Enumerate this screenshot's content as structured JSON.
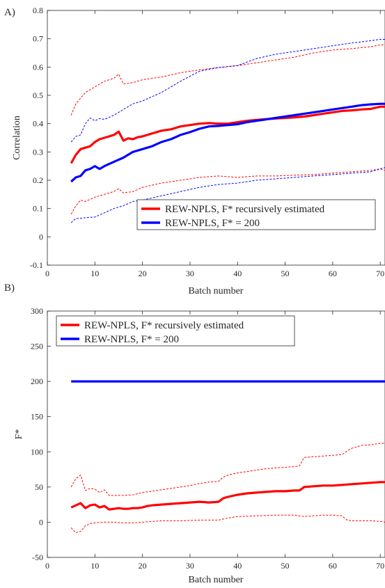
{
  "chart_data": [
    {
      "type": "line",
      "panel_label": "A)",
      "xlabel": "Batch number",
      "ylabel": "Correlation",
      "xlim": [
        0,
        71
      ],
      "ylim": [
        -0.1,
        0.8
      ],
      "x_ticks": [
        "0",
        "10",
        "20",
        "30",
        "40",
        "50",
        "60",
        "70"
      ],
      "y_ticks": [
        "-0.1",
        "0",
        "0.1",
        "0.2",
        "0.3",
        "0.4",
        "0.5",
        "0.6",
        "0.7",
        "0.8"
      ],
      "grid": false,
      "legend_position": "lower-right",
      "legend": [
        "REW-NPLS, F* recursively estimated",
        "REW-NPLS, F* = 200"
      ],
      "series": [
        {
          "name": "REW-NPLS, F* recursively estimated",
          "color": "#ff0000",
          "style": "solid",
          "x": [
            5,
            6,
            7,
            8,
            9,
            10,
            11,
            12,
            13,
            14,
            15,
            16,
            17,
            18,
            19,
            20,
            22,
            24,
            26,
            28,
            30,
            32,
            34,
            36,
            38,
            40,
            42,
            44,
            46,
            48,
            50,
            52,
            54,
            56,
            58,
            60,
            62,
            64,
            66,
            68,
            70,
            71
          ],
          "y": [
            0.26,
            0.29,
            0.31,
            0.315,
            0.32,
            0.335,
            0.345,
            0.35,
            0.355,
            0.36,
            0.372,
            0.34,
            0.348,
            0.345,
            0.352,
            0.355,
            0.365,
            0.375,
            0.38,
            0.39,
            0.395,
            0.4,
            0.402,
            0.4,
            0.4,
            0.405,
            0.41,
            0.413,
            0.416,
            0.418,
            0.42,
            0.422,
            0.425,
            0.43,
            0.435,
            0.44,
            0.445,
            0.447,
            0.45,
            0.452,
            0.46,
            0.46
          ]
        },
        {
          "name": "REW-NPLS, F* = 200",
          "color": "#0000ff",
          "style": "solid",
          "x": [
            5,
            6,
            7,
            8,
            9,
            10,
            11,
            12,
            14,
            16,
            18,
            20,
            22,
            24,
            26,
            28,
            30,
            32,
            34,
            36,
            38,
            40,
            42,
            44,
            46,
            48,
            50,
            52,
            54,
            56,
            58,
            60,
            62,
            64,
            66,
            68,
            70,
            71
          ],
          "y": [
            0.195,
            0.21,
            0.215,
            0.235,
            0.24,
            0.25,
            0.24,
            0.25,
            0.265,
            0.28,
            0.3,
            0.31,
            0.32,
            0.335,
            0.345,
            0.36,
            0.37,
            0.382,
            0.39,
            0.392,
            0.395,
            0.398,
            0.405,
            0.41,
            0.415,
            0.42,
            0.425,
            0.43,
            0.435,
            0.44,
            0.445,
            0.45,
            0.455,
            0.46,
            0.465,
            0.468,
            0.47,
            0.47
          ]
        },
        {
          "color": "#ff0000",
          "style": "dashed",
          "x": [
            5,
            6,
            7,
            8,
            9,
            10,
            12,
            14,
            15,
            16,
            18,
            20,
            24,
            28,
            32,
            36,
            40,
            44,
            48,
            52,
            56,
            60,
            64,
            68,
            70,
            71
          ],
          "y": [
            0.43,
            0.47,
            0.49,
            0.51,
            0.52,
            0.53,
            0.55,
            0.56,
            0.575,
            0.54,
            0.545,
            0.555,
            0.565,
            0.58,
            0.59,
            0.598,
            0.605,
            0.615,
            0.625,
            0.635,
            0.65,
            0.66,
            0.665,
            0.672,
            0.678,
            0.678
          ]
        },
        {
          "color": "#0000ff",
          "style": "dashed",
          "x": [
            5,
            6,
            7,
            8,
            9,
            10,
            11,
            12,
            14,
            16,
            18,
            20,
            24,
            28,
            32,
            36,
            40,
            44,
            48,
            52,
            56,
            60,
            64,
            68,
            70,
            71
          ],
          "y": [
            0.335,
            0.355,
            0.36,
            0.4,
            0.42,
            0.41,
            0.418,
            0.415,
            0.43,
            0.45,
            0.47,
            0.48,
            0.51,
            0.55,
            0.585,
            0.598,
            0.605,
            0.63,
            0.645,
            0.655,
            0.665,
            0.675,
            0.685,
            0.693,
            0.698,
            0.698
          ]
        },
        {
          "color": "#ff0000",
          "style": "dashed",
          "x": [
            5,
            6,
            7,
            8,
            10,
            12,
            14,
            15,
            16,
            18,
            20,
            24,
            28,
            32,
            36,
            40,
            44,
            48,
            52,
            56,
            60,
            64,
            68,
            70,
            71
          ],
          "y": [
            0.08,
            0.11,
            0.13,
            0.125,
            0.14,
            0.15,
            0.16,
            0.17,
            0.155,
            0.16,
            0.175,
            0.19,
            0.2,
            0.21,
            0.215,
            0.21,
            0.215,
            0.215,
            0.218,
            0.22,
            0.225,
            0.23,
            0.235,
            0.24,
            0.235
          ]
        },
        {
          "color": "#0000ff",
          "style": "dashed",
          "x": [
            5,
            6,
            7,
            8,
            10,
            12,
            14,
            16,
            18,
            20,
            24,
            28,
            32,
            36,
            40,
            44,
            48,
            52,
            56,
            60,
            64,
            68,
            70,
            71
          ],
          "y": [
            0.05,
            0.065,
            0.065,
            0.068,
            0.07,
            0.085,
            0.1,
            0.11,
            0.125,
            0.13,
            0.145,
            0.16,
            0.175,
            0.185,
            0.19,
            0.2,
            0.205,
            0.21,
            0.215,
            0.22,
            0.225,
            0.23,
            0.24,
            0.245
          ]
        }
      ]
    },
    {
      "type": "line",
      "panel_label": "B)",
      "xlabel": "Batch number",
      "ylabel": "F*",
      "xlim": [
        0,
        71
      ],
      "ylim": [
        -50,
        300
      ],
      "x_ticks": [
        "0",
        "10",
        "20",
        "30",
        "40",
        "50",
        "60",
        "70"
      ],
      "y_ticks": [
        "-50",
        "0",
        "50",
        "100",
        "150",
        "200",
        "250",
        "300"
      ],
      "grid": false,
      "legend_position": "top-left",
      "legend": [
        "REW-NPLS, F* recursively estimated",
        "REW-NPLS, F* = 200"
      ],
      "series": [
        {
          "name": "REW-NPLS, F* recursively estimated",
          "color": "#ff0000",
          "style": "solid",
          "x": [
            5,
            6,
            7,
            8,
            9,
            10,
            11,
            12,
            13,
            14,
            15,
            16,
            17,
            18,
            19,
            20,
            21,
            22,
            24,
            26,
            28,
            30,
            32,
            34,
            36,
            37,
            38,
            40,
            42,
            44,
            46,
            48,
            50,
            52,
            53,
            54,
            56,
            58,
            60,
            62,
            64,
            66,
            68,
            70,
            71
          ],
          "y": [
            21,
            24,
            27,
            20,
            24,
            25,
            21,
            23,
            18,
            19,
            20,
            19,
            19,
            20,
            20,
            21,
            23,
            24,
            25,
            26,
            27,
            28,
            29,
            28,
            29,
            34,
            36,
            39,
            41,
            42,
            43,
            44,
            44,
            45,
            45,
            50,
            51,
            52,
            52,
            53,
            54,
            55,
            56,
            57,
            57
          ]
        },
        {
          "name": "REW-NPLS, F* = 200",
          "color": "#0000ff",
          "style": "solid",
          "x": [
            5,
            71
          ],
          "y": [
            200,
            200
          ]
        },
        {
          "color": "#ff0000",
          "style": "dashed",
          "x": [
            5,
            6,
            7,
            8,
            9,
            10,
            11,
            12,
            13,
            14,
            16,
            18,
            20,
            22,
            24,
            26,
            28,
            30,
            32,
            34,
            36,
            37,
            38,
            40,
            42,
            44,
            46,
            48,
            50,
            52,
            53,
            54,
            56,
            58,
            60,
            62,
            63,
            64,
            66,
            68,
            70,
            71
          ],
          "y": [
            50,
            62,
            67,
            45,
            48,
            47,
            42,
            46,
            38,
            38,
            38,
            39,
            42,
            44,
            46,
            48,
            50,
            52,
            55,
            57,
            58,
            64,
            67,
            70,
            72,
            74,
            76,
            77,
            78,
            79,
            80,
            92,
            93,
            94,
            95,
            96,
            101,
            105,
            109,
            110,
            112,
            112
          ]
        },
        {
          "color": "#ff0000",
          "style": "dashed",
          "x": [
            5,
            6,
            7,
            8,
            9,
            10,
            12,
            14,
            16,
            18,
            20,
            24,
            28,
            32,
            36,
            38,
            40,
            44,
            48,
            52,
            54,
            56,
            58,
            60,
            62,
            63,
            64,
            68,
            70,
            71
          ],
          "y": [
            -8,
            -15,
            -13,
            -5,
            -2,
            -1,
            0,
            0,
            -1,
            -1,
            0,
            2,
            2,
            3,
            3,
            6,
            8,
            9,
            10,
            10,
            8,
            9,
            10,
            10,
            9,
            3,
            2,
            2,
            1,
            0
          ]
        }
      ]
    }
  ]
}
